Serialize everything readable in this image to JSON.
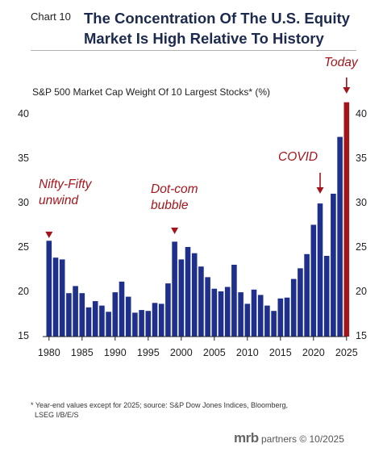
{
  "header": {
    "chart_number": "Chart 10",
    "title_line1": "The Concentration Of The U.S. Equity",
    "title_line2": "Market Is High Relative To History"
  },
  "footnote": {
    "line1": "* Year-end values except for 2025; source: S&P Dow Jones Indices, Bloomberg,",
    "line2": "LSEG I/B/E/S"
  },
  "brand": {
    "name": "mrb",
    "suffix": "partners © 10/2025"
  },
  "colors": {
    "bar": "#1f2f8c",
    "highlight": "#a3151b",
    "title": "#1c2a4e"
  },
  "chart_data": {
    "type": "bar",
    "title": "The Concentration Of The U.S. Equity Market Is High Relative To History",
    "ylabel": "S&P 500 Market Cap Weight Of 10 Largest Stocks* (%)",
    "xlabel": "",
    "ylim": [
      15,
      42
    ],
    "grid": false,
    "dual_y_axis": true,
    "x_ticks": [
      "1980",
      "1985",
      "1990",
      "1995",
      "2000",
      "2005",
      "2010",
      "2015",
      "2020",
      "2025"
    ],
    "y_ticks": [
      "15",
      "20",
      "25",
      "30",
      "35",
      "40"
    ],
    "categories": [
      1980,
      1981,
      1982,
      1983,
      1984,
      1985,
      1986,
      1987,
      1988,
      1989,
      1990,
      1991,
      1992,
      1993,
      1994,
      1995,
      1996,
      1997,
      1998,
      1999,
      2000,
      2001,
      2002,
      2003,
      2004,
      2005,
      2006,
      2007,
      2008,
      2009,
      2010,
      2011,
      2012,
      2013,
      2014,
      2015,
      2016,
      2017,
      2018,
      2019,
      2020,
      2021,
      2022,
      2023,
      2024,
      2025
    ],
    "values": [
      25.7,
      23.8,
      23.6,
      19.8,
      20.6,
      19.8,
      18.2,
      18.9,
      18.4,
      17.7,
      19.9,
      21.1,
      19.4,
      17.6,
      17.9,
      17.8,
      18.7,
      18.6,
      20.9,
      25.6,
      23.6,
      25.0,
      24.3,
      22.8,
      21.6,
      20.3,
      20.0,
      20.5,
      23.0,
      19.9,
      18.6,
      20.2,
      19.6,
      18.4,
      17.8,
      19.2,
      19.3,
      21.4,
      22.6,
      24.2,
      27.5,
      29.9,
      24.0,
      31.0,
      37.4,
      41.3
    ],
    "highlight_category": 2025,
    "annotations": [
      {
        "text_lines": [
          "Nifty-Fifty",
          "unwind"
        ],
        "year": 1980
      },
      {
        "text_lines": [
          "Dot-com",
          "bubble"
        ],
        "year": 1999
      },
      {
        "text_lines": [
          "COVID"
        ],
        "year": 2021
      },
      {
        "text_lines": [
          "Today"
        ],
        "year": 2025
      }
    ]
  }
}
